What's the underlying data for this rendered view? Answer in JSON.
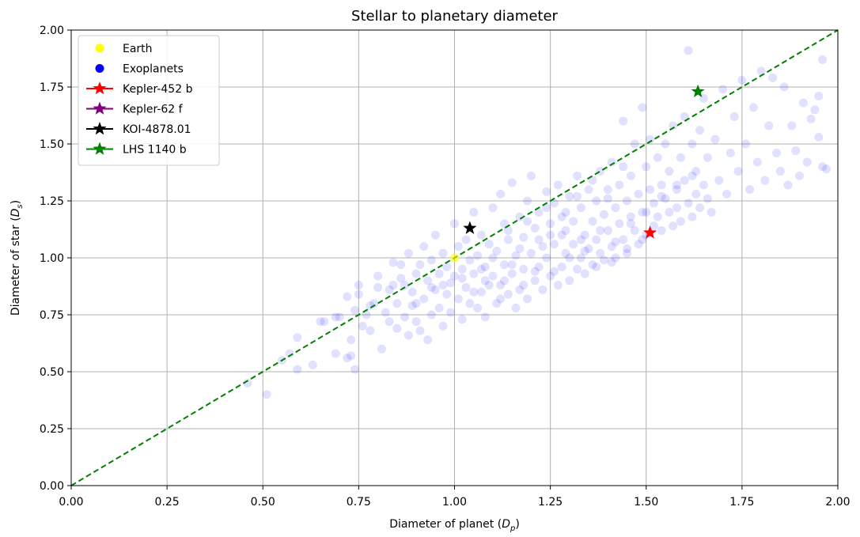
{
  "chart_data": {
    "type": "scatter",
    "title": "Stellar to planetary diameter",
    "xlabel_text": "Diameter of planet (",
    "xlabel_sym": "D",
    "xlabel_sub": "p",
    "xlabel_end": ")",
    "ylabel_text": "Diameter of star (",
    "ylabel_sym": "D",
    "ylabel_sub": "s",
    "ylabel_end": ")",
    "xlim": [
      0,
      2
    ],
    "ylim": [
      0,
      2
    ],
    "xticks": [
      "0.00",
      "0.25",
      "0.50",
      "0.75",
      "1.00",
      "1.25",
      "1.50",
      "1.75",
      "2.00"
    ],
    "yticks": [
      "0.00",
      "0.25",
      "0.50",
      "0.75",
      "1.00",
      "1.25",
      "1.50",
      "1.75",
      "2.00"
    ],
    "grid": true,
    "legend_position": "top-left",
    "reference_line": {
      "type": "y=x",
      "color": "#008000",
      "style": "dashed"
    },
    "series": [
      {
        "name": "Earth",
        "marker": "circle",
        "color": "#ffff00",
        "points": [
          [
            1.0,
            1.0
          ]
        ]
      },
      {
        "name": "Exoplanets",
        "marker": "circle",
        "color": "#0000ff",
        "alpha": 0.12,
        "points": [
          [
            0.46,
            0.45
          ],
          [
            0.51,
            0.4
          ],
          [
            0.55,
            0.55
          ],
          [
            0.57,
            0.58
          ],
          [
            0.59,
            0.65
          ],
          [
            0.59,
            0.51
          ],
          [
            0.63,
            0.53
          ],
          [
            0.65,
            0.72
          ],
          [
            0.66,
            0.72
          ],
          [
            0.69,
            0.74
          ],
          [
            0.69,
            0.58
          ],
          [
            0.7,
            0.74
          ],
          [
            0.72,
            0.83
          ],
          [
            0.72,
            0.56
          ],
          [
            0.73,
            0.57
          ],
          [
            0.73,
            0.64
          ],
          [
            0.74,
            0.51
          ],
          [
            0.74,
            0.77
          ],
          [
            0.75,
            0.84
          ],
          [
            0.75,
            0.88
          ],
          [
            0.76,
            0.7
          ],
          [
            0.77,
            0.75
          ],
          [
            0.78,
            0.68
          ],
          [
            0.79,
            0.8
          ],
          [
            0.8,
            0.92
          ],
          [
            0.8,
            0.87
          ],
          [
            0.81,
            0.6
          ],
          [
            0.82,
            0.76
          ],
          [
            0.83,
            0.72
          ],
          [
            0.84,
            0.98
          ],
          [
            0.84,
            0.88
          ],
          [
            0.85,
            0.8
          ],
          [
            0.85,
            0.69
          ],
          [
            0.86,
            0.91
          ],
          [
            0.87,
            0.74
          ],
          [
            0.87,
            0.88
          ],
          [
            0.88,
            1.02
          ],
          [
            0.88,
            0.66
          ],
          [
            0.89,
            0.85
          ],
          [
            0.89,
            0.79
          ],
          [
            0.9,
            0.93
          ],
          [
            0.9,
            0.72
          ],
          [
            0.91,
            0.68
          ],
          [
            0.91,
            0.97
          ],
          [
            0.92,
            1.05
          ],
          [
            0.92,
            0.82
          ],
          [
            0.93,
            0.64
          ],
          [
            0.93,
            0.9
          ],
          [
            0.94,
            0.75
          ],
          [
            0.94,
            0.99
          ],
          [
            0.95,
            0.86
          ],
          [
            0.95,
            1.1
          ],
          [
            0.96,
            0.78
          ],
          [
            0.96,
            0.93
          ],
          [
            0.97,
            0.7
          ],
          [
            0.97,
            1.02
          ],
          [
            0.98,
            0.84
          ],
          [
            0.98,
            0.96
          ],
          [
            0.99,
            0.76
          ],
          [
            0.99,
            0.89
          ],
          [
            1.0,
            1.15
          ],
          [
            1.0,
            0.92
          ],
          [
            1.01,
            0.82
          ],
          [
            1.01,
            1.05
          ],
          [
            1.02,
            0.95
          ],
          [
            1.02,
            0.73
          ],
          [
            1.03,
            0.87
          ],
          [
            1.03,
            1.08
          ],
          [
            1.04,
            0.8
          ],
          [
            1.04,
            0.99
          ],
          [
            1.05,
            0.93
          ],
          [
            1.05,
            1.2
          ],
          [
            1.06,
            0.78
          ],
          [
            1.06,
            1.01
          ],
          [
            1.07,
            0.85
          ],
          [
            1.07,
            1.1
          ],
          [
            1.08,
            0.96
          ],
          [
            1.08,
            0.74
          ],
          [
            1.09,
            1.06
          ],
          [
            1.09,
            0.88
          ],
          [
            1.1,
            1.22
          ],
          [
            1.1,
            0.92
          ],
          [
            1.11,
            0.8
          ],
          [
            1.11,
            1.03
          ],
          [
            1.12,
            1.28
          ],
          [
            1.12,
            0.88
          ],
          [
            1.13,
            0.97
          ],
          [
            1.13,
            1.15
          ],
          [
            1.14,
            0.84
          ],
          [
            1.14,
            1.08
          ],
          [
            1.15,
            1.33
          ],
          [
            1.15,
            0.93
          ],
          [
            1.16,
            0.78
          ],
          [
            1.16,
            1.01
          ],
          [
            1.17,
            1.18
          ],
          [
            1.17,
            0.86
          ],
          [
            1.18,
            1.09
          ],
          [
            1.18,
            0.95
          ],
          [
            1.19,
            1.25
          ],
          [
            1.19,
            0.82
          ],
          [
            1.2,
            1.36
          ],
          [
            1.2,
            1.02
          ],
          [
            1.21,
            0.9
          ],
          [
            1.21,
            1.13
          ],
          [
            1.22,
            1.2
          ],
          [
            1.22,
            0.96
          ],
          [
            1.23,
            1.05
          ],
          [
            1.23,
            0.86
          ],
          [
            1.24,
            1.29
          ],
          [
            1.24,
            1.0
          ],
          [
            1.25,
            1.15
          ],
          [
            1.25,
            0.92
          ],
          [
            1.26,
            1.24
          ],
          [
            1.26,
            1.06
          ],
          [
            1.27,
            0.88
          ],
          [
            1.27,
            1.32
          ],
          [
            1.28,
            1.1
          ],
          [
            1.28,
            0.96
          ],
          [
            1.29,
            1.2
          ],
          [
            1.29,
            1.02
          ],
          [
            1.3,
            0.9
          ],
          [
            1.3,
            1.27
          ],
          [
            1.31,
            1.06
          ],
          [
            1.31,
            1.16
          ],
          [
            1.32,
            0.95
          ],
          [
            1.32,
            1.36
          ],
          [
            1.33,
            1.0
          ],
          [
            1.33,
            1.22
          ],
          [
            1.34,
            1.1
          ],
          [
            1.34,
            0.93
          ],
          [
            1.35,
            1.3
          ],
          [
            1.35,
            1.04
          ],
          [
            1.36,
            1.16
          ],
          [
            1.36,
            0.97
          ],
          [
            1.37,
            1.25
          ],
          [
            1.37,
            1.08
          ],
          [
            1.38,
            1.38
          ],
          [
            1.38,
            1.02
          ],
          [
            1.39,
            1.19
          ],
          [
            1.39,
            0.99
          ],
          [
            1.4,
            1.12
          ],
          [
            1.4,
            1.3
          ],
          [
            1.41,
            1.05
          ],
          [
            1.41,
            1.42
          ],
          [
            1.42,
            1.22
          ],
          [
            1.42,
            1.0
          ],
          [
            1.43,
            1.15
          ],
          [
            1.43,
            1.32
          ],
          [
            1.44,
            1.08
          ],
          [
            1.44,
            1.6
          ],
          [
            1.45,
            1.25
          ],
          [
            1.45,
            1.04
          ],
          [
            1.46,
            1.36
          ],
          [
            1.46,
            1.18
          ],
          [
            1.47,
            1.12
          ],
          [
            1.47,
            1.5
          ],
          [
            1.48,
            1.28
          ],
          [
            1.48,
            1.06
          ],
          [
            1.49,
            1.2
          ],
          [
            1.49,
            1.66
          ],
          [
            1.5,
            1.4
          ],
          [
            1.5,
            1.1
          ],
          [
            1.51,
            1.3
          ],
          [
            1.51,
            1.52
          ],
          [
            1.52,
            1.14
          ],
          [
            1.52,
            1.24
          ],
          [
            1.53,
            1.44
          ],
          [
            1.53,
            1.18
          ],
          [
            1.54,
            1.32
          ],
          [
            1.54,
            1.12
          ],
          [
            1.55,
            1.5
          ],
          [
            1.55,
            1.26
          ],
          [
            1.56,
            1.2
          ],
          [
            1.56,
            1.38
          ],
          [
            1.57,
            1.14
          ],
          [
            1.57,
            1.58
          ],
          [
            1.58,
            1.3
          ],
          [
            1.58,
            1.22
          ],
          [
            1.59,
            1.44
          ],
          [
            1.59,
            1.16
          ],
          [
            1.6,
            1.62
          ],
          [
            1.6,
            1.34
          ],
          [
            1.61,
            1.91
          ],
          [
            1.61,
            1.24
          ],
          [
            1.62,
            1.5
          ],
          [
            1.62,
            1.18
          ],
          [
            1.63,
            1.38
          ],
          [
            1.63,
            1.28
          ],
          [
            1.64,
            1.56
          ],
          [
            1.64,
            1.22
          ],
          [
            1.65,
            1.7
          ],
          [
            1.65,
            1.32
          ],
          [
            1.66,
            1.44
          ],
          [
            1.66,
            1.26
          ],
          [
            1.67,
            1.2
          ],
          [
            1.68,
            1.52
          ],
          [
            1.69,
            1.34
          ],
          [
            1.7,
            1.74
          ],
          [
            1.71,
            1.28
          ],
          [
            1.72,
            1.46
          ],
          [
            1.73,
            1.62
          ],
          [
            1.74,
            1.38
          ],
          [
            1.75,
            1.78
          ],
          [
            1.76,
            1.5
          ],
          [
            1.77,
            1.3
          ],
          [
            1.78,
            1.66
          ],
          [
            1.79,
            1.42
          ],
          [
            1.8,
            1.82
          ],
          [
            1.81,
            1.34
          ],
          [
            1.82,
            1.58
          ],
          [
            1.83,
            1.79
          ],
          [
            1.84,
            1.46
          ],
          [
            1.85,
            1.38
          ],
          [
            1.86,
            1.75
          ],
          [
            1.87,
            1.32
          ],
          [
            1.88,
            1.58
          ],
          [
            1.89,
            1.47
          ],
          [
            1.9,
            1.36
          ],
          [
            1.91,
            1.68
          ],
          [
            1.92,
            1.42
          ],
          [
            1.93,
            1.61
          ],
          [
            1.94,
            1.65
          ],
          [
            1.95,
            1.71
          ],
          [
            1.95,
            1.53
          ],
          [
            1.96,
            1.4
          ],
          [
            1.96,
            1.87
          ],
          [
            1.97,
            1.39
          ],
          [
            0.78,
            0.79
          ],
          [
            0.83,
            0.86
          ],
          [
            0.86,
            0.97
          ],
          [
            0.9,
            0.8
          ],
          [
            0.94,
            0.87
          ],
          [
            0.97,
            0.88
          ],
          [
            1.02,
            0.91
          ],
          [
            1.05,
            0.85
          ],
          [
            1.08,
            0.9
          ],
          [
            1.12,
            0.82
          ],
          [
            1.15,
            0.97
          ],
          [
            1.18,
            0.88
          ],
          [
            1.22,
            1.08
          ],
          [
            1.26,
            0.94
          ],
          [
            1.3,
            1.0
          ],
          [
            1.34,
            1.03
          ],
          [
            1.38,
            1.12
          ],
          [
            1.42,
            1.07
          ],
          [
            1.46,
            1.15
          ],
          [
            1.5,
            1.2
          ],
          [
            1.54,
            1.27
          ],
          [
            1.58,
            1.32
          ],
          [
            1.62,
            1.36
          ],
          [
            1.1,
            1.0
          ],
          [
            1.13,
            0.9
          ],
          [
            1.17,
            1.04
          ],
          [
            1.21,
            0.94
          ],
          [
            1.25,
            1.1
          ],
          [
            1.28,
            1.18
          ],
          [
            1.32,
            1.27
          ],
          [
            1.36,
            1.34
          ],
          [
            1.4,
            1.26
          ],
          [
            1.44,
            1.4
          ],
          [
            1.07,
            0.95
          ],
          [
            1.14,
            1.12
          ],
          [
            1.19,
            1.16
          ],
          [
            1.24,
            1.22
          ],
          [
            1.29,
            1.12
          ],
          [
            1.33,
            1.08
          ],
          [
            1.37,
            0.96
          ],
          [
            1.41,
            0.98
          ],
          [
            1.45,
            1.02
          ],
          [
            1.49,
            1.08
          ]
        ]
      },
      {
        "name": "Kepler-452 b",
        "marker": "star",
        "color": "#ff0000",
        "points": [
          [
            1.51,
            1.11
          ]
        ]
      },
      {
        "name": "Kepler-62 f",
        "marker": "star",
        "color": "#800080",
        "points": []
      },
      {
        "name": "KOI-4878.01",
        "marker": "star",
        "color": "#000000",
        "points": [
          [
            1.04,
            1.13
          ]
        ]
      },
      {
        "name": "LHS 1140 b",
        "marker": "star",
        "color": "#008000",
        "points": [
          [
            1.635,
            1.73
          ]
        ]
      }
    ]
  }
}
